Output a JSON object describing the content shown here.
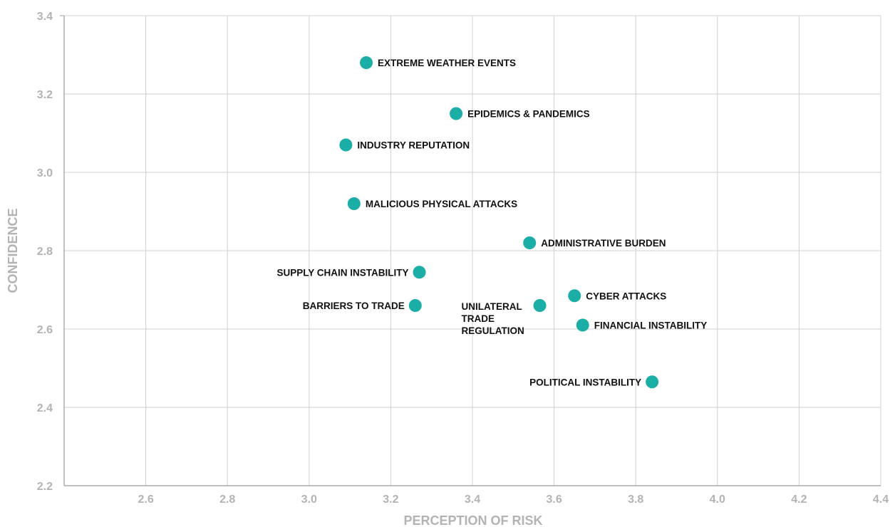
{
  "chart_data": {
    "type": "scatter",
    "xlabel": "PERCEPTION OF RISK",
    "ylabel": "CONFIDENCE",
    "xlim": [
      2.4,
      4.4
    ],
    "ylim": [
      2.2,
      3.4
    ],
    "x_ticks": [
      "2.6",
      "2.8",
      "3.0",
      "3.2",
      "3.4",
      "3.6",
      "3.8",
      "4.0",
      "4.2",
      "4.4"
    ],
    "y_ticks": [
      "2.2",
      "2.4",
      "2.6",
      "2.8",
      "3.0",
      "3.2",
      "3.4"
    ],
    "grid": true,
    "marker_color": "#1aaea6",
    "points": [
      {
        "label": "EXTREME WEATHER EVENTS",
        "x": 3.14,
        "y": 3.28,
        "label_side": "right"
      },
      {
        "label": "EPIDEMICS & PANDEMICS",
        "x": 3.36,
        "y": 3.15,
        "label_side": "right"
      },
      {
        "label": "INDUSTRY REPUTATION",
        "x": 3.09,
        "y": 3.07,
        "label_side": "right"
      },
      {
        "label": "MALICIOUS PHYSICAL ATTACKS",
        "x": 3.11,
        "y": 2.92,
        "label_side": "right"
      },
      {
        "label": "ADMINISTRATIVE BURDEN",
        "x": 3.54,
        "y": 2.82,
        "label_side": "right"
      },
      {
        "label": "SUPPLY CHAIN INSTABILITY",
        "x": 3.27,
        "y": 2.745,
        "label_side": "left"
      },
      {
        "label": "CYBER ATTACKS",
        "x": 3.65,
        "y": 2.685,
        "label_side": "right"
      },
      {
        "label": "BARRIERS TO TRADE",
        "x": 3.26,
        "y": 2.66,
        "label_side": "left"
      },
      {
        "label": "UNILATERAL TRADE REGULATION",
        "x": 3.565,
        "y": 2.66,
        "label_side": "below-left",
        "label_lines": [
          "UNILATERAL",
          "TRADE",
          "REGULATION"
        ]
      },
      {
        "label": "FINANCIAL INSTABILITY",
        "x": 3.67,
        "y": 2.61,
        "label_side": "right"
      },
      {
        "label": "POLITICAL INSTABILITY",
        "x": 3.84,
        "y": 2.465,
        "label_side": "left"
      }
    ]
  }
}
